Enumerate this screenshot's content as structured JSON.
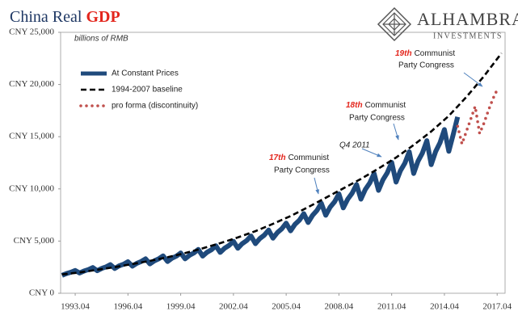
{
  "chart_data": {
    "type": "line",
    "title": "China Real",
    "title_highlight": "GDP",
    "subtitle": "billions of RMB",
    "logo": {
      "name": "ALHAMBRA",
      "tagline": "INVESTMENTS"
    },
    "xlim": [
      1992.92,
      2018.2
    ],
    "xticks": [
      {
        "value": 1993.75,
        "label": "1993.04"
      },
      {
        "value": 1996.75,
        "label": "1996.04"
      },
      {
        "value": 1999.75,
        "label": "1999.04"
      },
      {
        "value": 2002.75,
        "label": "2002.04"
      },
      {
        "value": 2005.75,
        "label": "2005.04"
      },
      {
        "value": 2008.75,
        "label": "2008.04"
      },
      {
        "value": 2011.75,
        "label": "2011.04"
      },
      {
        "value": 2014.75,
        "label": "2014.04"
      },
      {
        "value": 2017.75,
        "label": "2017.04"
      }
    ],
    "ylim": [
      0,
      25000
    ],
    "yticks": [
      {
        "value": 0,
        "label": "CNY 0"
      },
      {
        "value": 5000,
        "label": "CNY 5,000"
      },
      {
        "value": 10000,
        "label": "CNY 10,000"
      },
      {
        "value": 15000,
        "label": "CNY 15,000"
      },
      {
        "value": 20000,
        "label": "CNY 20,000"
      },
      {
        "value": 25000,
        "label": "CNY 25,000"
      }
    ],
    "legend": "top-left",
    "series": [
      {
        "name": "At Constant Prices",
        "color": "#1f4a7c",
        "linestyle": "solid",
        "x": [
          1993,
          1993.25,
          1993.5,
          1993.75,
          1994,
          1994.25,
          1994.5,
          1994.75,
          1995,
          1995.25,
          1995.5,
          1995.75,
          1996,
          1996.25,
          1996.5,
          1996.75,
          1997,
          1997.25,
          1997.5,
          1997.75,
          1998,
          1998.25,
          1998.5,
          1998.75,
          1999,
          1999.25,
          1999.5,
          1999.75,
          2000,
          2000.25,
          2000.5,
          2000.75,
          2001,
          2001.25,
          2001.5,
          2001.75,
          2002,
          2002.25,
          2002.5,
          2002.75,
          2003,
          2003.25,
          2003.5,
          2003.75,
          2004,
          2004.25,
          2004.5,
          2004.75,
          2005,
          2005.25,
          2005.5,
          2005.75,
          2006,
          2006.25,
          2006.5,
          2006.75,
          2007,
          2007.25,
          2007.5,
          2007.75,
          2008,
          2008.25,
          2008.5,
          2008.75,
          2009,
          2009.25,
          2009.5,
          2009.75,
          2010,
          2010.25,
          2010.5,
          2010.75,
          2011,
          2011.25,
          2011.5,
          2011.75,
          2012,
          2012.25,
          2012.5,
          2012.75,
          2013,
          2013.25,
          2013.5,
          2013.75,
          2014,
          2014.25,
          2014.5,
          2014.75,
          2015,
          2015.25,
          2015.5
        ],
        "values": [
          1720,
          1890,
          2010,
          2180,
          1940,
          2130,
          2270,
          2460,
          2160,
          2380,
          2520,
          2740,
          2380,
          2620,
          2780,
          3020,
          2600,
          2860,
          3040,
          3300,
          2820,
          3100,
          3300,
          3580,
          3040,
          3350,
          3550,
          3860,
          3300,
          3640,
          3860,
          4200,
          3560,
          3930,
          4170,
          4540,
          3920,
          4320,
          4580,
          4980,
          4310,
          4750,
          5050,
          5490,
          4750,
          5240,
          5560,
          6050,
          5280,
          5820,
          6180,
          6720,
          5980,
          6600,
          7000,
          7620,
          6780,
          7470,
          7930,
          8620,
          7480,
          8250,
          8760,
          9520,
          8180,
          9020,
          9580,
          10420,
          9020,
          9940,
          10560,
          11480,
          9860,
          10860,
          11540,
          12540,
          10650,
          11740,
          12460,
          13550,
          11480,
          12660,
          13440,
          14620,
          12320,
          13580,
          14420,
          15680,
          13600,
          15200,
          16900
        ]
      },
      {
        "name": "1994-2007 baseline",
        "color": "#000000",
        "linestyle": "dashed",
        "x": [
          1993,
          1994,
          1995,
          1996,
          1997,
          1998,
          1999,
          2000,
          2001,
          2002,
          2003,
          2004,
          2005,
          2006,
          2007,
          2008,
          2009,
          2010,
          2011,
          2012,
          2013,
          2014,
          2015,
          2016,
          2017,
          2018
        ],
        "values": [
          1800,
          2000,
          2250,
          2500,
          2800,
          3100,
          3450,
          3850,
          4300,
          4800,
          5350,
          5950,
          6650,
          7400,
          8250,
          9150,
          10050,
          10950,
          11950,
          13000,
          14200,
          15500,
          17000,
          18800,
          20800,
          23000
        ]
      },
      {
        "name": "pro forma (discontinuity)",
        "color": "#c0504d",
        "linestyle": "dotted",
        "x": [
          2015.5,
          2015.75,
          2016,
          2016.25,
          2016.5,
          2016.75,
          2017,
          2017.25,
          2017.5,
          2017.75
        ],
        "values": [
          16000,
          14300,
          15500,
          16700,
          17900,
          15300,
          16300,
          17500,
          18600,
          19500
        ]
      }
    ],
    "annotations": [
      {
        "ordinal": "17th",
        "line1": "Communist",
        "line2": "Party Congress"
      },
      {
        "line1": "Q4 2011"
      },
      {
        "ordinal": "18th",
        "line1": "Communist",
        "line2": "Party Congress"
      },
      {
        "ordinal": "19th",
        "line1": "Communist",
        "line2": "Party Congress"
      }
    ]
  }
}
